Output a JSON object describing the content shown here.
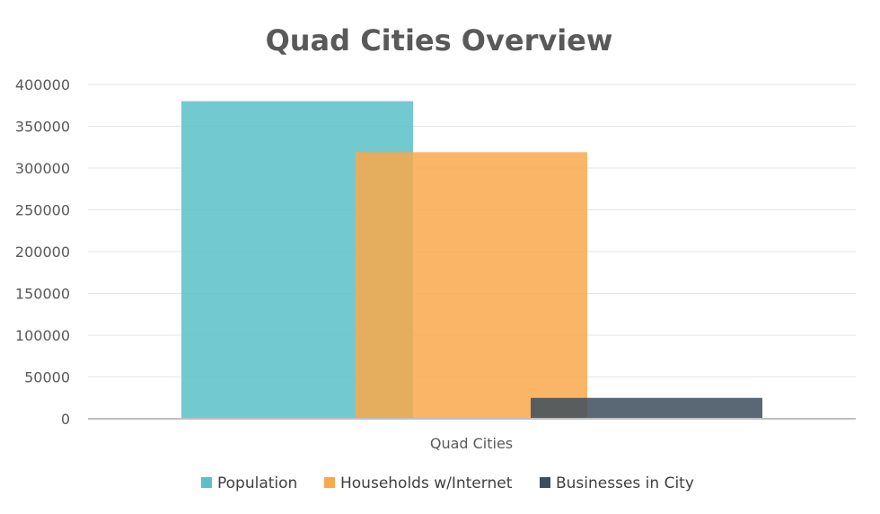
{
  "chart_data": {
    "type": "bar",
    "title": "Quad Cities Overview",
    "categories": [
      "Quad Cities"
    ],
    "series": [
      {
        "name": "Population",
        "values": [
          380000
        ],
        "color": "#5bbfc8"
      },
      {
        "name": "Households w/Internet",
        "values": [
          319000
        ],
        "color": "#f9a94b"
      },
      {
        "name": "Businesses in City",
        "values": [
          25000
        ],
        "color": "#3c4d5c"
      }
    ],
    "ylim": [
      0,
      400000
    ],
    "yticks": [
      0,
      50000,
      100000,
      150000,
      200000,
      250000,
      300000,
      350000,
      400000
    ],
    "grid": true,
    "legend_position": "bottom",
    "overlap": true
  }
}
